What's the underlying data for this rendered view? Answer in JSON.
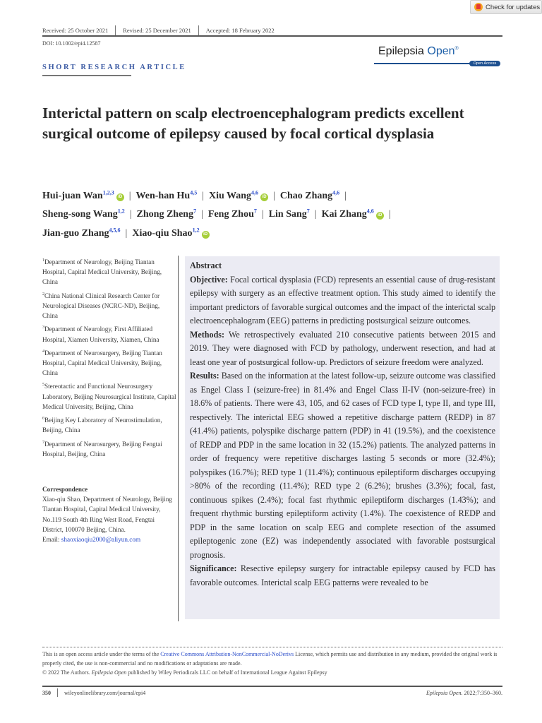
{
  "check_updates": {
    "label": "Check for updates",
    "icon": "crossmark-icon"
  },
  "header": {
    "received": "Received: 25 October 2021",
    "revised": "Revised: 25 December 2021",
    "accepted": "Accepted: 18 February 2022",
    "doi": "DOI: 10.1002/epi4.12587",
    "article_type": "SHORT RESEARCH ARTICLE"
  },
  "journal": {
    "name_part1": "Epilepsia ",
    "name_part2": "Open",
    "reg": "®",
    "open_access": "Open Access"
  },
  "title": "Interictal pattern on scalp electroencephalogram predicts excellent surgical outcome of epilepsy caused by focal cortical dysplasia",
  "authors": [
    {
      "name": "Hui-juan Wan",
      "aff": "1,2,3",
      "orcid": true
    },
    {
      "name": "Wen-han Hu",
      "aff": "4,5",
      "orcid": false
    },
    {
      "name": "Xiu Wang",
      "aff": "4,6",
      "orcid": true
    },
    {
      "name": "Chao Zhang",
      "aff": "4,6",
      "orcid": false
    },
    {
      "name": "Sheng-song Wang",
      "aff": "1,2",
      "orcid": false
    },
    {
      "name": "Zhong Zheng",
      "aff": "7",
      "orcid": false
    },
    {
      "name": "Feng Zhou",
      "aff": "7",
      "orcid": false
    },
    {
      "name": "Lin Sang",
      "aff": "7",
      "orcid": false
    },
    {
      "name": "Kai Zhang",
      "aff": "4,6",
      "orcid": true
    },
    {
      "name": "Jian-guo Zhang",
      "aff": "4,5,6",
      "orcid": false
    },
    {
      "name": "Xiao-qiu Shao",
      "aff": "1,2",
      "orcid": true
    }
  ],
  "affiliations": [
    {
      "num": "1",
      "text": "Department of Neurology, Beijing Tiantan Hospital, Capital Medical University, Beijing, China"
    },
    {
      "num": "2",
      "text": "China National Clinical Research Center for Neurological Diseases (NCRC-ND), Beijing, China"
    },
    {
      "num": "3",
      "text": "Department of Neurology, First Affiliated Hospital, Xiamen University, Xiamen, China"
    },
    {
      "num": "4",
      "text": "Department of Neurosurgery, Beijing Tiantan Hospital, Capital Medical University, Beijing, China"
    },
    {
      "num": "5",
      "text": "Stereotactic and Functional Neurosurgery Laboratory, Beijing Neurosurgical Institute, Capital Medical University, Beijing, China"
    },
    {
      "num": "6",
      "text": "Beijing Key Laboratory of Neurostimulation, Beijing, China"
    },
    {
      "num": "7",
      "text": "Department of Neurosurgery, Beijing Fengtai Hospital, Beijing, China"
    }
  ],
  "correspondence": {
    "heading": "Correspondence",
    "text": "Xiao-qiu Shao, Department of Neurology, Beijing Tiantan Hospital, Capital Medical University, No.119 South 4th Ring West Road, Fengtai District, 100070 Beijing, China.",
    "email_label": "Email: ",
    "email": "shaoxiaoqiu2000@aliyun.com"
  },
  "abstract": {
    "heading": "Abstract",
    "objective_label": "Objective:",
    "objective": " Focal cortical dysplasia (FCD) represents an essential cause of drug-resistant epilepsy with surgery as an effective treatment option. This study aimed to identify the important predictors of favorable surgical outcomes and the impact of the interictal scalp electroencephalogram (EEG) patterns in predicting postsurgical seizure outcomes.",
    "methods_label": "Methods:",
    "methods": " We retrospectively evaluated 210 consecutive patients between 2015 and 2019. They were diagnosed with FCD by pathology, underwent resection, and had at least one year of postsurgical follow-up. Predictors of seizure freedom were analyzed.",
    "results_label": "Results:",
    "results": " Based on the information at the latest follow-up, seizure outcome was classified as Engel Class I (seizure-free) in 81.4% and Engel Class II-IV (non-seizure-free) in 18.6% of patients. There were 43, 105, and 62 cases of FCD type I, type II, and type III, respectively. The interictal EEG showed a repetitive discharge pattern (REDP) in 87 (41.4%) patients, polyspike discharge pattern (PDP) in 41 (19.5%), and the coexistence of REDP and PDP in the same location in 32 (15.2%) patients. The analyzed patterns in order of frequency were repetitive discharges lasting 5 seconds or more (32.4%); polyspikes (16.7%); RED type 1 (11.4%); continuous epileptiform discharges occupying >80% of the recording (11.4%); RED type 2 (6.2%); brushes (3.3%); focal, fast, continuous spikes (2.4%); focal fast rhythmic epileptiform discharges (1.43%); and frequent rhythmic bursting epileptiform activity (1.4%). The coexistence of REDP and PDP in the same location on scalp EEG and complete resection of the assumed epileptogenic zone (EZ) was independently associated with favorable postsurgical prognosis.",
    "significance_label": "Significance:",
    "significance": " Resective epilepsy surgery for intractable epilepsy caused by FCD has favorable outcomes. Interictal scalp EEG patterns were revealed to be"
  },
  "license": {
    "pre": "This is an open access article under the terms of the ",
    "link": "Creative Commons Attribution-NonCommercial-NoDerivs",
    "post": " License, which permits use and distribution in any medium, provided the original work is properly cited, the use is non-commercial and no modifications or adaptations are made.",
    "copyright_pre": "© 2022 The Authors. ",
    "copyright_journal": "Epilepsia Open",
    "copyright_post": " published by Wiley Periodicals LLC on behalf of International League Against Epilepsy"
  },
  "footer": {
    "page": "350",
    "url": "wileyonlinelibrary.com/journal/epi4",
    "journal": "Epilepsia Open.",
    "citation": " 2022;7:350–360."
  }
}
